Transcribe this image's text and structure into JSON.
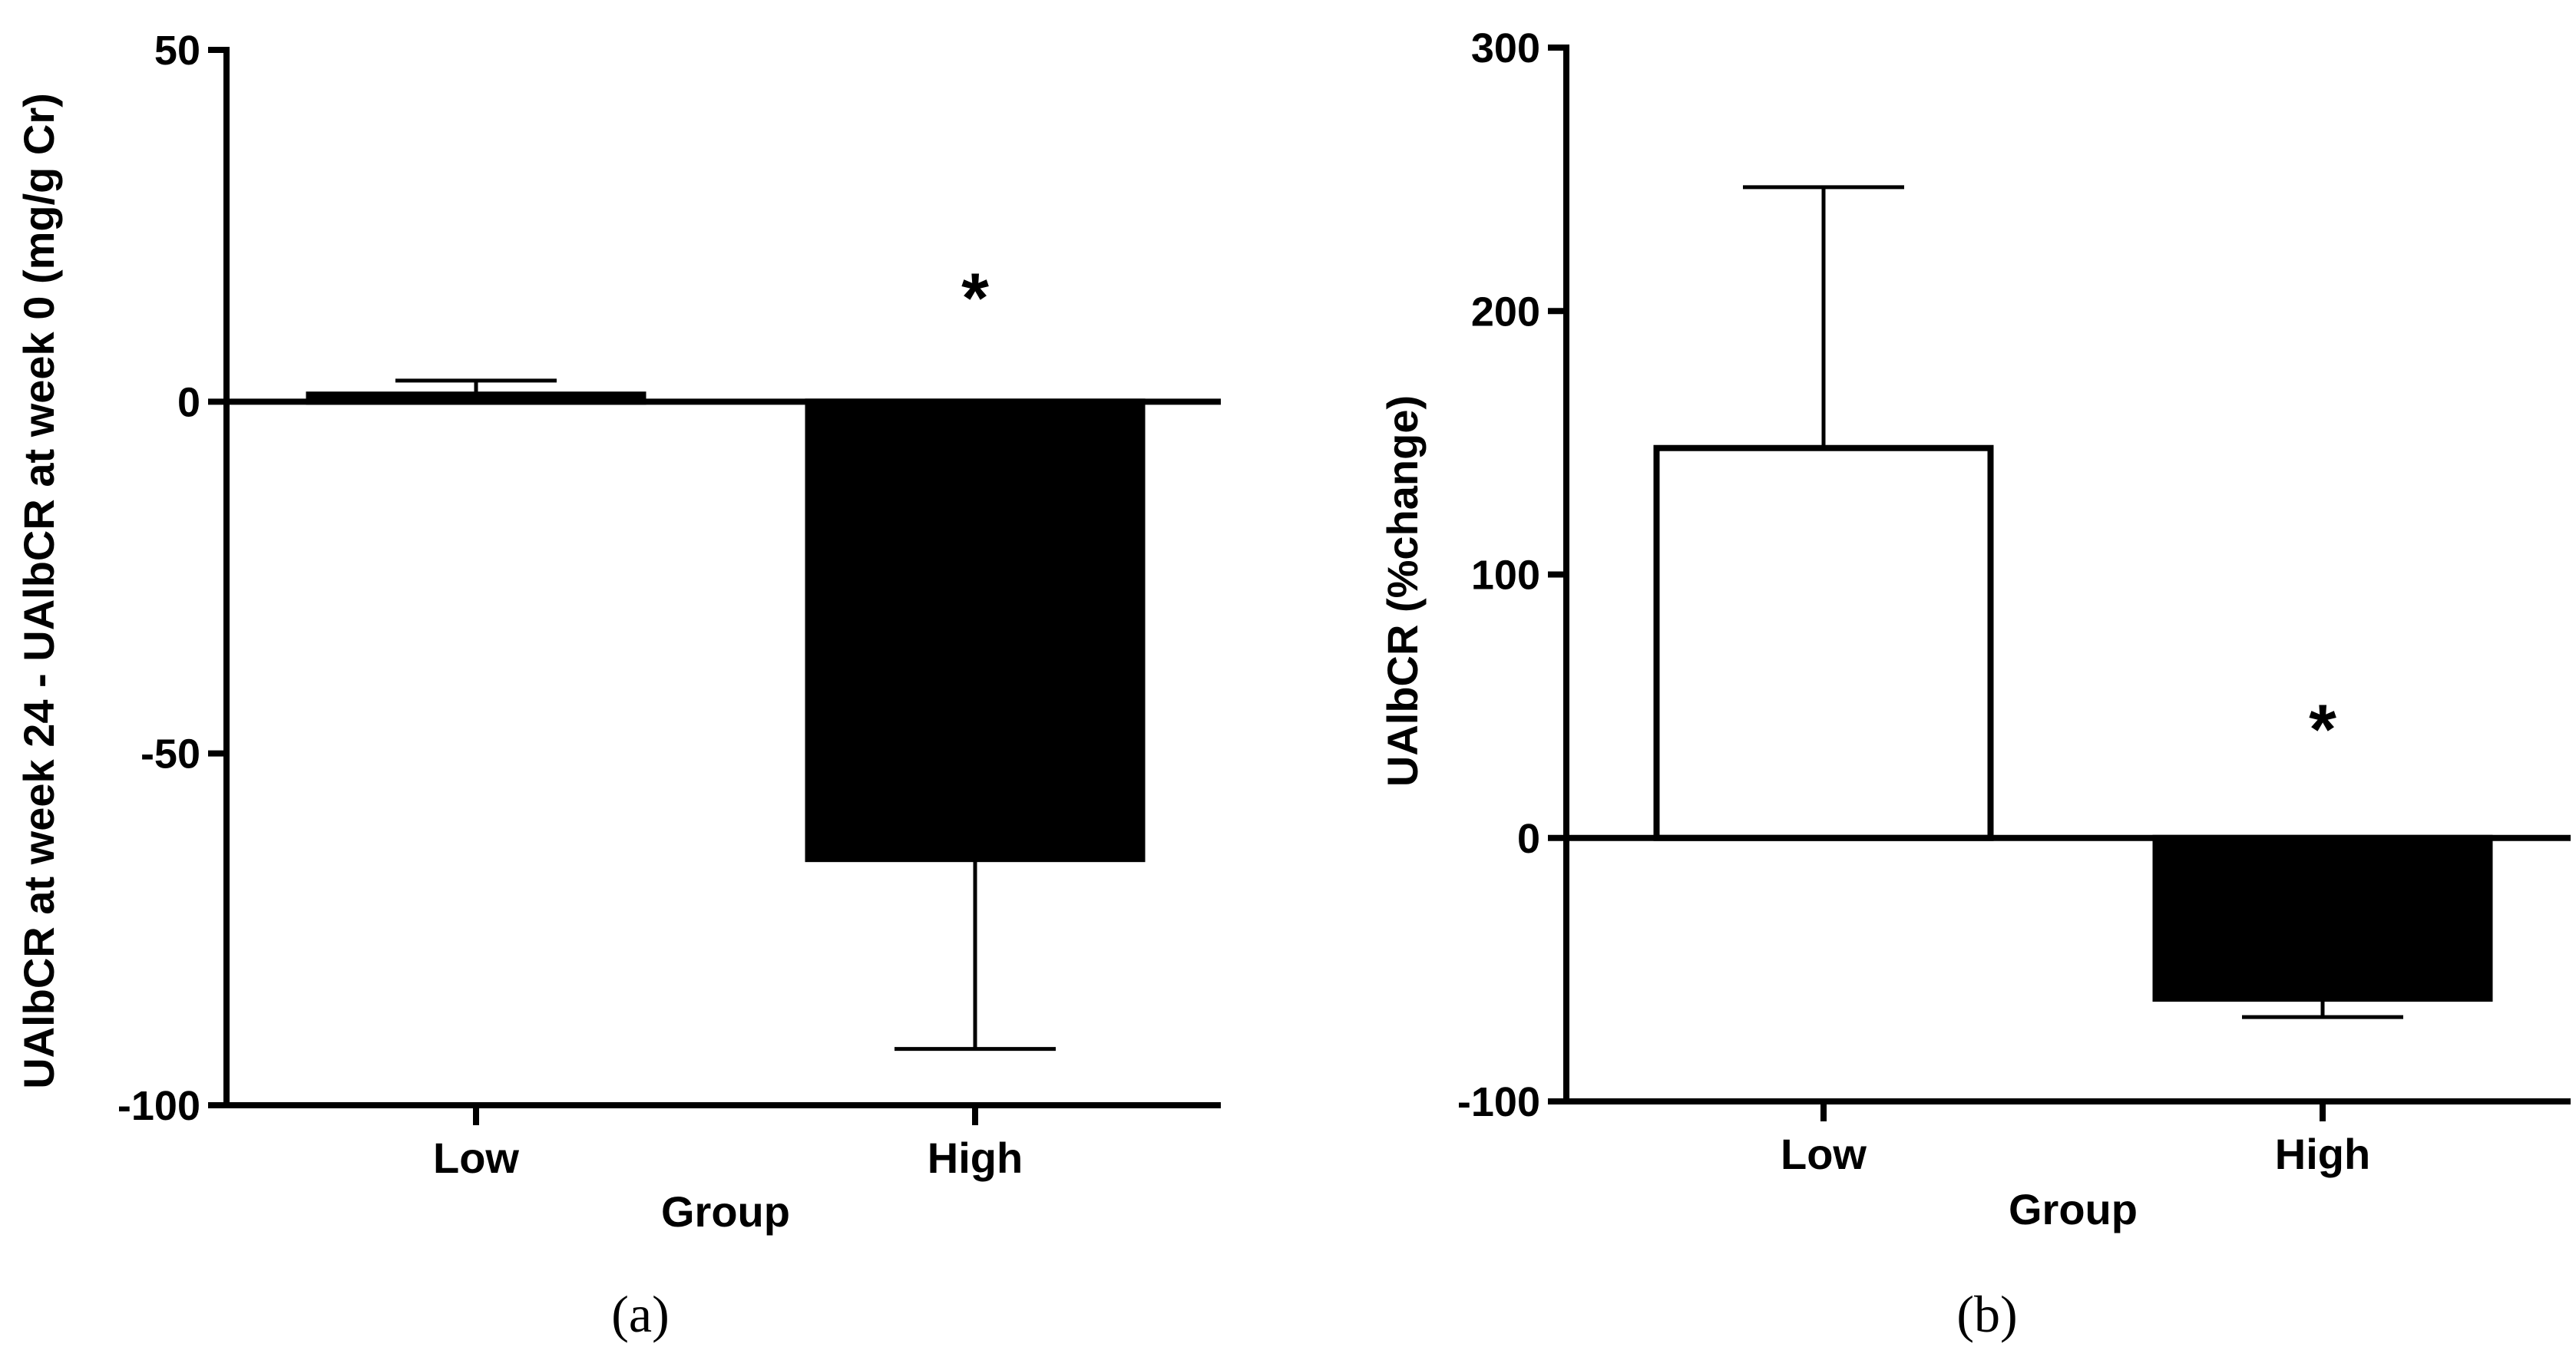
{
  "chart_data": [
    {
      "type": "bar",
      "panel_label": "(a)",
      "categories": [
        "Low",
        "High"
      ],
      "values": [
        1,
        -65
      ],
      "error": [
        2,
        27
      ],
      "bar_colors": [
        "#000000",
        "#000000"
      ],
      "significance": [
        "",
        "*"
      ],
      "xlabel": "Group",
      "ylabel": "UAlbCR at week 24 - UAlbCR at week 0 (mg/g Cr)",
      "ylim": [
        -100,
        50
      ],
      "yticks": [
        50,
        0,
        -50,
        -100
      ],
      "ytick_labels": [
        "50",
        "0",
        "-50",
        "-100"
      ],
      "grid": false
    },
    {
      "type": "bar",
      "panel_label": "(b)",
      "categories": [
        "Low",
        "High"
      ],
      "values": [
        148,
        -61
      ],
      "error": [
        99,
        7
      ],
      "bar_colors": [
        "#ffffff",
        "#000000"
      ],
      "significance": [
        "",
        "*"
      ],
      "xlabel": "Group",
      "ylabel": "UAlbCR (%change)",
      "ylim": [
        -100,
        300
      ],
      "yticks": [
        300,
        200,
        100,
        0,
        -100
      ],
      "ytick_labels": [
        "300",
        "200",
        "100",
        "0",
        "-100"
      ],
      "grid": false
    }
  ]
}
